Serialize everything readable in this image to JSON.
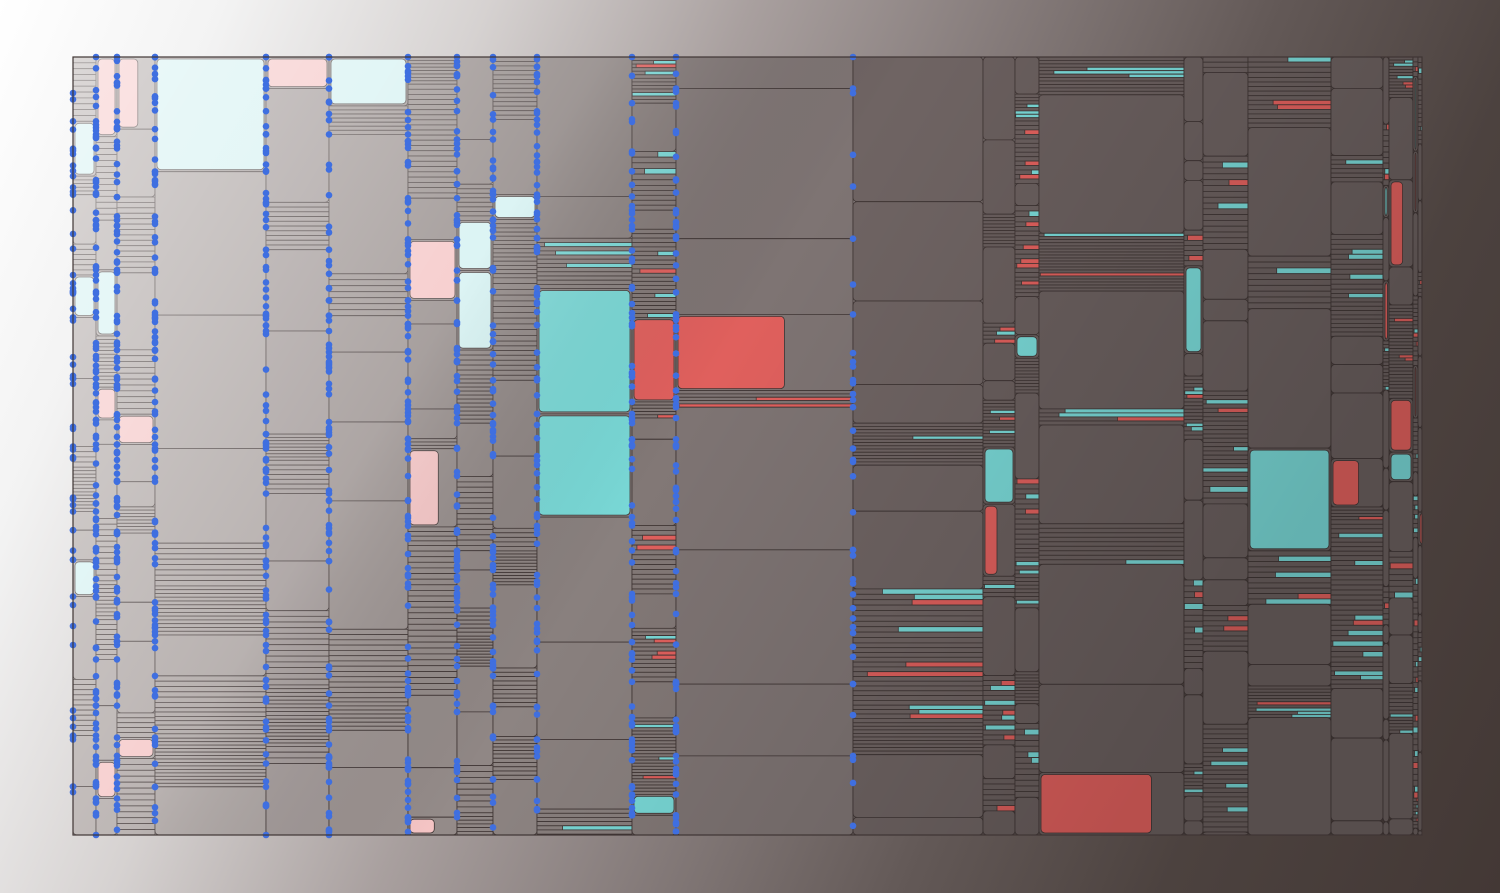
{
  "artwork": {
    "columns": 24,
    "palette": {
      "stroke": "#3f3534",
      "node": "#3f6fe0",
      "red": "#e0605d",
      "cyan": "#79d8d6",
      "pale_red": "#f5c5c5",
      "pale_cyan": "#d4f1f1",
      "gray_light": "#b0a8a6",
      "gray_dark": "#6a5f5e"
    }
  }
}
